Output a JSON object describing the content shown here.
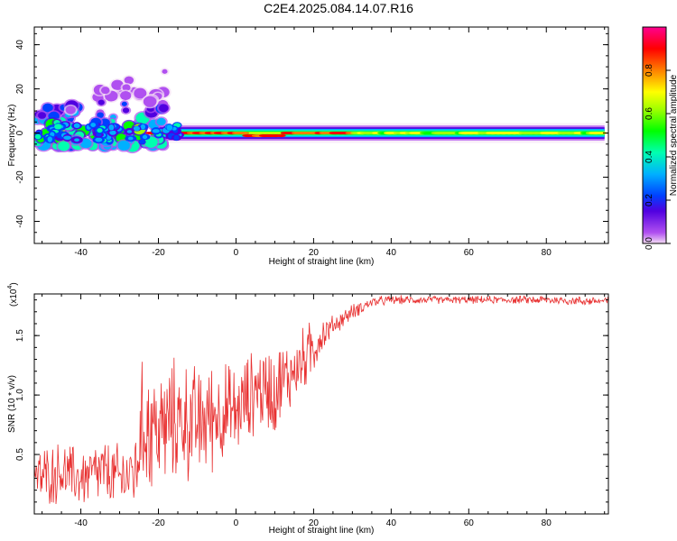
{
  "title": "C2E4.2025.084.14.07.R16",
  "chart_data": [
    {
      "type": "heatmap",
      "xlabel": "Height of straight line (km)",
      "ylabel": "Frequency (Hz)",
      "xlim": [
        -52,
        96
      ],
      "ylim": [
        -50,
        48
      ],
      "xticks": [
        "-40",
        "-20",
        "0",
        "20",
        "40",
        "60",
        "80"
      ],
      "xtick_values": [
        -40,
        -20,
        0,
        20,
        40,
        60,
        80
      ],
      "yticks": [
        "-40",
        "-20",
        "0",
        "20",
        "40"
      ],
      "ytick_values": [
        -40,
        -20,
        0,
        20,
        40
      ],
      "colorbar": {
        "label": "Normalized spectral amplitude",
        "range": [
          0,
          1
        ],
        "ticks": [
          "0.0",
          "0.2",
          "0.4",
          "0.6",
          "0.8"
        ],
        "tick_values": [
          0.0,
          0.2,
          0.4,
          0.6,
          0.8
        ]
      },
      "ridge": {
        "frequency_hz": 0,
        "x_start": -22,
        "x_end": 95,
        "description_values": {
          "peak_amplitude": 0.95,
          "spread_hz_far": 4
        }
      },
      "scatter_region": {
        "x_range": [
          -52,
          -18
        ],
        "freq_range": [
          -6,
          33
        ]
      }
    },
    {
      "type": "line",
      "xlabel": "Height of straight line (km)",
      "ylabel": "SNR (10 * v/v)",
      "y_scale_label": "(x10",
      "y_scale_exp": "4",
      "xlim": [
        -52,
        96
      ],
      "ylim": [
        0,
        1.85
      ],
      "xticks": [
        "-40",
        "-20",
        "0",
        "20",
        "40",
        "60",
        "80"
      ],
      "xtick_values": [
        -40,
        -20,
        0,
        20,
        40,
        60,
        80
      ],
      "yticks": [
        "0.5",
        "1.0",
        "1.5"
      ],
      "ytick_values": [
        0.5,
        1.0,
        1.5
      ],
      "color": "#e83030",
      "series": [
        {
          "x": [
            -52,
            -45,
            -40,
            -35,
            -30,
            -26,
            -24,
            -20,
            -15,
            -10,
            -5,
            0,
            5,
            10,
            15,
            20,
            22,
            25,
            30,
            35,
            40,
            50,
            60,
            70,
            80,
            90,
            95
          ],
          "y": [
            0.3,
            0.35,
            0.3,
            0.35,
            0.3,
            0.35,
            0.75,
            0.7,
            0.8,
            0.75,
            0.85,
            0.85,
            1.05,
            1.05,
            1.2,
            1.4,
            1.5,
            1.58,
            1.7,
            1.78,
            1.8,
            1.8,
            1.8,
            1.8,
            1.8,
            1.79,
            1.79
          ],
          "noise": [
            0.2,
            0.2,
            0.2,
            0.22,
            0.22,
            0.25,
            0.45,
            0.4,
            0.4,
            0.38,
            0.35,
            0.3,
            0.28,
            0.3,
            0.22,
            0.2,
            0.12,
            0.07,
            0.05,
            0.035,
            0.03,
            0.025,
            0.025,
            0.025,
            0.03,
            0.03,
            0.03
          ]
        }
      ]
    }
  ]
}
